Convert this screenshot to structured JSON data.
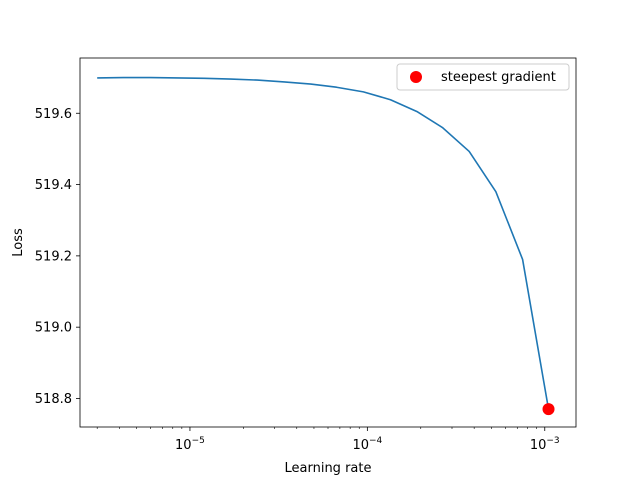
{
  "chart_data": {
    "type": "line",
    "xscale": "log",
    "xlabel": "Learning rate",
    "ylabel": "Loss",
    "xlim": [
      2.4e-06,
      0.0015
    ],
    "ylim": [
      518.72,
      519.755
    ],
    "x_ticks": [
      {
        "value": 1e-05,
        "base": "10",
        "exp": "−5"
      },
      {
        "value": 0.0001,
        "base": "10",
        "exp": "−4"
      },
      {
        "value": 0.001,
        "base": "10",
        "exp": "−3"
      }
    ],
    "y_ticks": [
      {
        "value": 518.8,
        "label": "518.8"
      },
      {
        "value": 519.0,
        "label": "519.0"
      },
      {
        "value": 519.2,
        "label": "519.2"
      },
      {
        "value": 519.4,
        "label": "519.4"
      },
      {
        "value": 519.6,
        "label": "519.6"
      }
    ],
    "series": [
      {
        "color": "#1f77b4",
        "x": [
          3e-06,
          4.2e-06,
          6e-06,
          8.5e-06,
          1.2e-05,
          1.7e-05,
          2.4e-05,
          3.4e-05,
          4.8e-05,
          6.7e-05,
          9.5e-05,
          0.000135,
          0.00019,
          0.000265,
          0.000375,
          0.00053,
          0.00075,
          0.00105
        ],
        "y": [
          519.699,
          519.7,
          519.7,
          519.699,
          519.698,
          519.696,
          519.693,
          519.688,
          519.682,
          519.673,
          519.66,
          519.638,
          519.605,
          519.56,
          519.493,
          519.38,
          519.19,
          518.77
        ]
      }
    ],
    "points": [
      {
        "name": "steepest gradient",
        "x": 0.00105,
        "y": 518.77,
        "color": "#ff0000"
      }
    ],
    "legend": {
      "position": "top-right",
      "entries": [
        "steepest gradient"
      ]
    },
    "grid": false
  }
}
